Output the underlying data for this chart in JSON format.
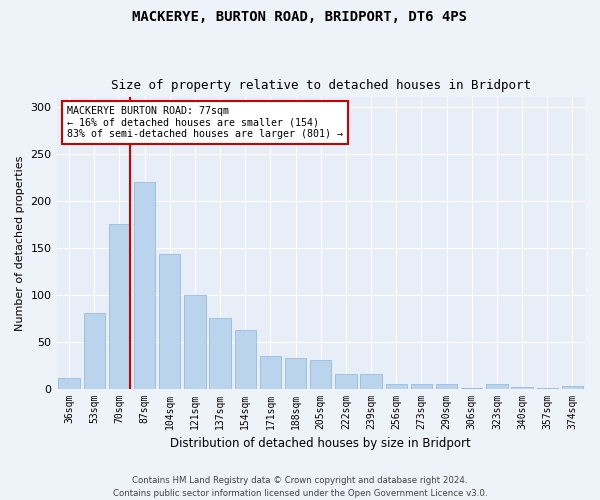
{
  "title": "MACKERYE, BURTON ROAD, BRIDPORT, DT6 4PS",
  "subtitle": "Size of property relative to detached houses in Bridport",
  "xlabel": "Distribution of detached houses by size in Bridport",
  "ylabel": "Number of detached properties",
  "categories": [
    "36sqm",
    "53sqm",
    "70sqm",
    "87sqm",
    "104sqm",
    "121sqm",
    "137sqm",
    "154sqm",
    "171sqm",
    "188sqm",
    "205sqm",
    "222sqm",
    "239sqm",
    "256sqm",
    "273sqm",
    "290sqm",
    "306sqm",
    "323sqm",
    "340sqm",
    "357sqm",
    "374sqm"
  ],
  "values": [
    11,
    80,
    175,
    220,
    143,
    100,
    75,
    62,
    35,
    32,
    30,
    15,
    15,
    5,
    5,
    5,
    1,
    5,
    2,
    1,
    3
  ],
  "bar_color": "#bad4ee",
  "bar_edge_color": "#8eb4d8",
  "annotation_text1": "MACKERYE BURTON ROAD: 77sqm",
  "annotation_text2": "← 16% of detached houses are smaller (154)",
  "annotation_text3": "83% of semi-detached houses are larger (801) →",
  "ylim": [
    0,
    310
  ],
  "yticks": [
    0,
    50,
    100,
    150,
    200,
    250,
    300
  ],
  "footer1": "Contains HM Land Registry data © Crown copyright and database right 2024.",
  "footer2": "Contains public sector information licensed under the Open Government Licence v3.0.",
  "bg_color": "#eef2f9",
  "plot_bg_color": "#e8eef8",
  "grid_color": "#ffffff",
  "red_line_color": "#cc0000",
  "annotation_box_color": "#ffffff",
  "annotation_box_edge": "#cc0000"
}
